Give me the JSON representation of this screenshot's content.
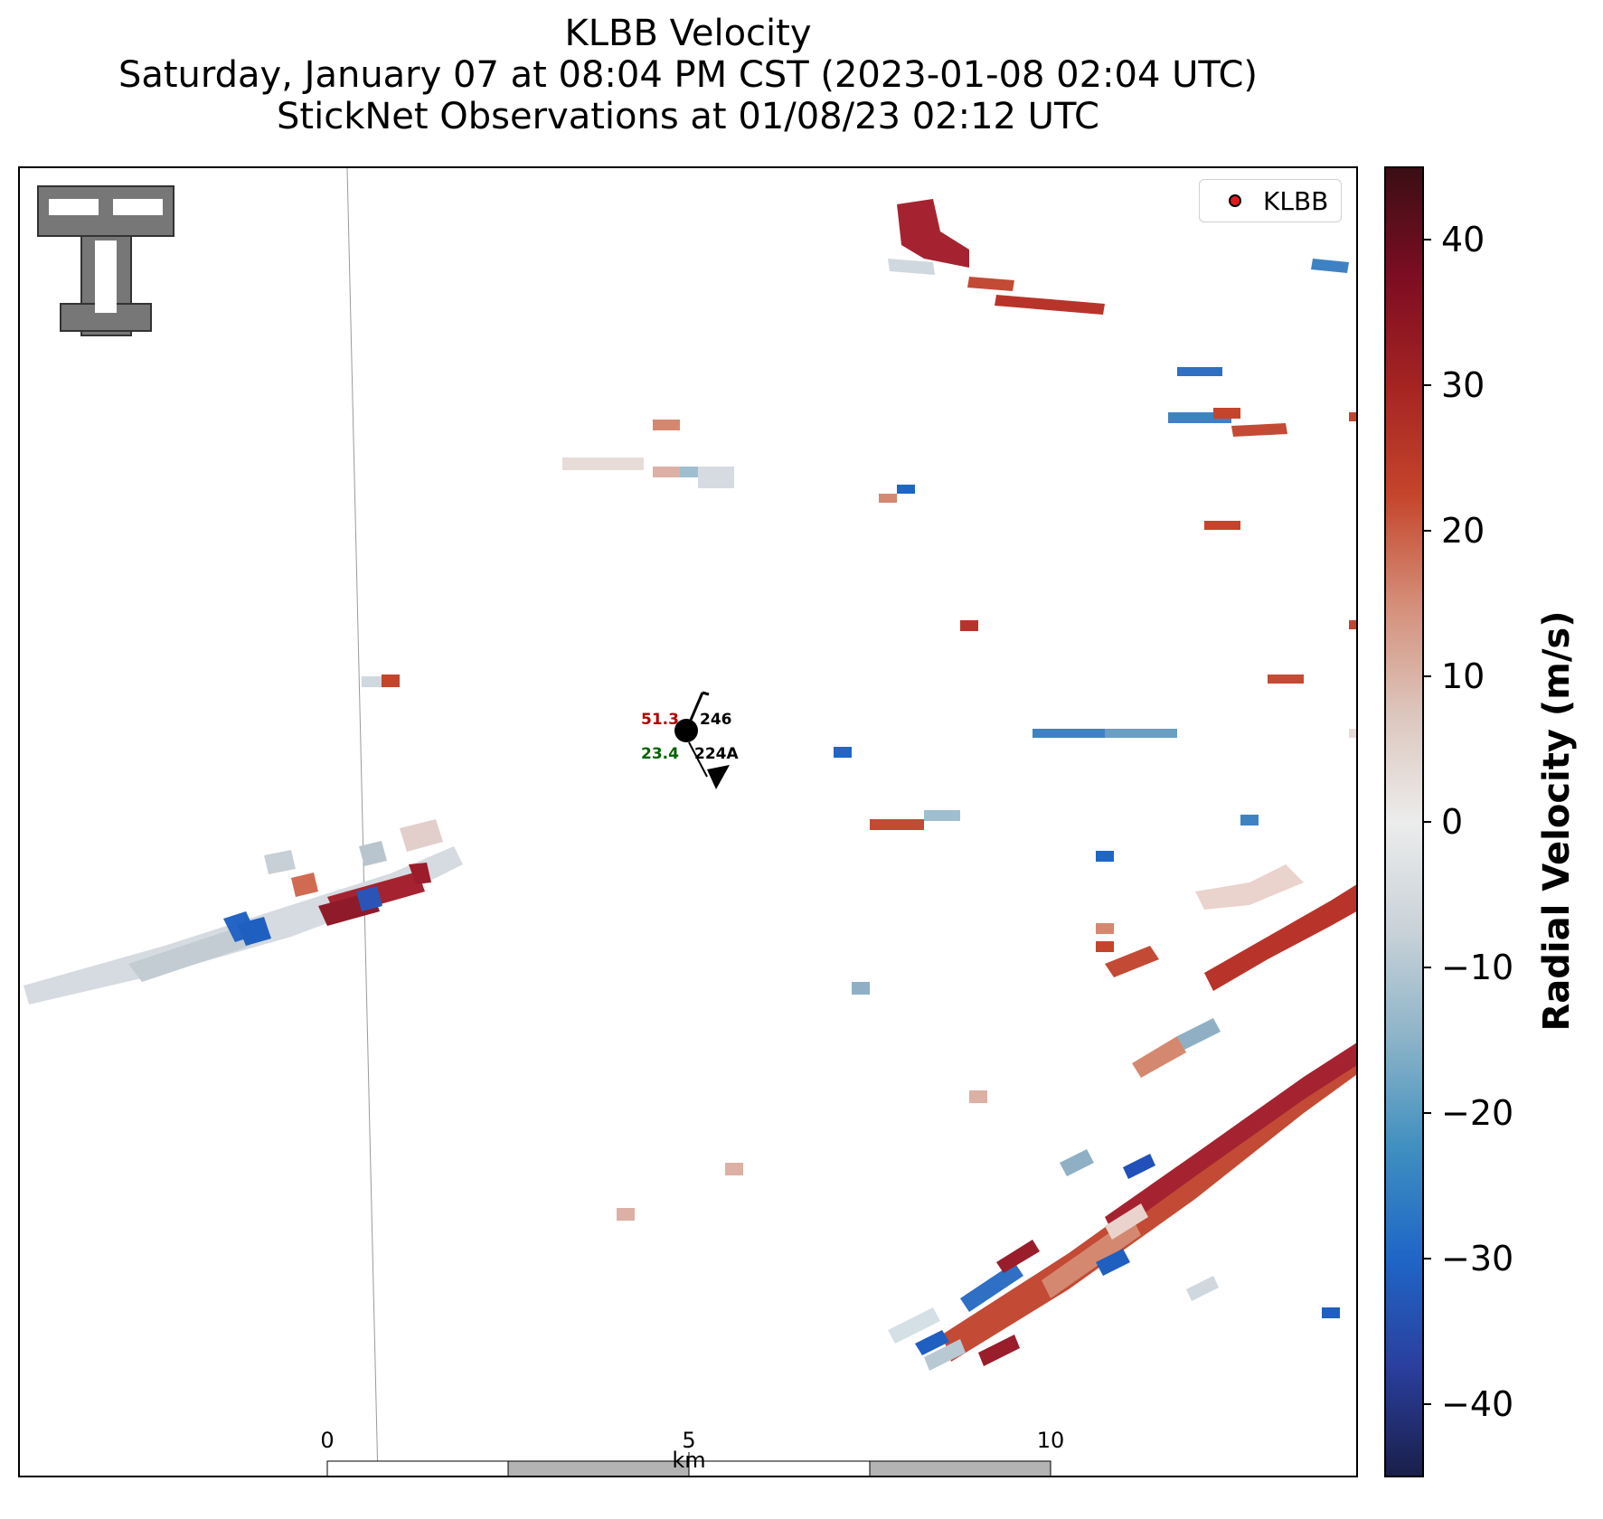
{
  "title": {
    "line1": "KLBB Velocity",
    "line2": "Saturday, January 07 at 08:04 PM CST (2023-01-08 02:04 UTC)",
    "line3": "StickNet Observations at 01/08/23 02:12 UTC"
  },
  "legend": {
    "label": "KLBB",
    "marker_color": "#e31a1c"
  },
  "logo": {
    "name": "Texas Tech Double T",
    "text": "TT"
  },
  "scale_bar": {
    "ticks": [
      "0",
      "5",
      "10"
    ],
    "unit": "km"
  },
  "stations": [
    {
      "id": "246",
      "temperature": "51.3",
      "dewpoint": ""
    },
    {
      "id": "224A",
      "temperature": "",
      "dewpoint": "23.4"
    }
  ],
  "station_colors": {
    "temperature": "#b30000",
    "dewpoint": "#006400"
  },
  "colorbar": {
    "label": "Radial Velocity (m/s)",
    "min": -45,
    "max": 45,
    "ticks": [
      "40",
      "30",
      "20",
      "10",
      "0",
      "−10",
      "−20",
      "−30",
      "−40"
    ],
    "tick_values": [
      40,
      30,
      20,
      10,
      0,
      -10,
      -20,
      -30,
      -40
    ],
    "colors": [
      "#1a1f4a",
      "#2a3f9e",
      "#1f66c6",
      "#3f8fc0",
      "#8bb3c8",
      "#c9d2d8",
      "#ececec",
      "#dcc6bd",
      "#d58e78",
      "#c4452b",
      "#a52422",
      "#7d0d22",
      "#3b0e15"
    ]
  }
}
